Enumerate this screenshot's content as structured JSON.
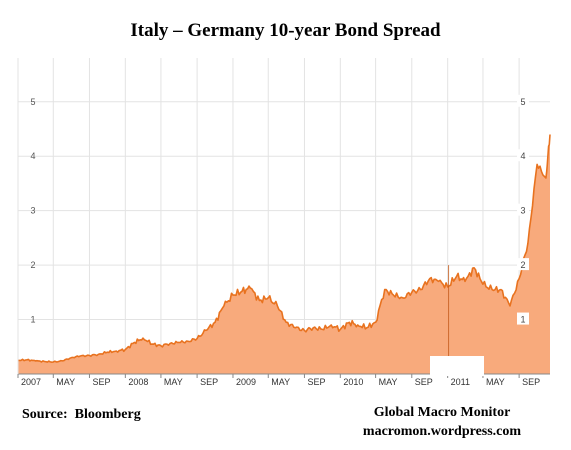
{
  "title": "Italy –  Germany 10-year Bond Spread",
  "source": "Source:  Bloomberg",
  "credit": {
    "line1": "Global Macro Monitor",
    "line2": "macromon.wordpress.com"
  },
  "colors": {
    "area_fill": "#f8aa7c",
    "line": "#e8721f",
    "grid": "#e3e3e3",
    "axis": "#888888"
  },
  "chart_data": {
    "type": "area",
    "title": "Italy –  Germany 10-year Bond Spread",
    "xlabel": "",
    "ylabel": "",
    "ylim": [
      0,
      5
    ],
    "y_ticks": [
      1,
      2,
      3,
      4,
      5
    ],
    "x_range": [
      "2007-01-01",
      "2011-12-15"
    ],
    "x_tick_labels": [
      {
        "date": "2007-01-01",
        "label": "2007"
      },
      {
        "date": "2007-05-01",
        "label": "MAY"
      },
      {
        "date": "2007-09-01",
        "label": "SEP"
      },
      {
        "date": "2008-01-01",
        "label": "2008"
      },
      {
        "date": "2008-05-01",
        "label": "MAY"
      },
      {
        "date": "2008-09-01",
        "label": "SEP"
      },
      {
        "date": "2009-01-01",
        "label": "2009"
      },
      {
        "date": "2009-05-01",
        "label": "MAY"
      },
      {
        "date": "2009-09-01",
        "label": "SEP"
      },
      {
        "date": "2010-01-01",
        "label": "2010"
      },
      {
        "date": "2010-05-01",
        "label": "MAY"
      },
      {
        "date": "2010-09-01",
        "label": "SEP"
      },
      {
        "date": "2011-01-01",
        "label": "2011"
      },
      {
        "date": "2011-05-01",
        "label": "MAY"
      },
      {
        "date": "2011-09-01",
        "label": "SEP"
      }
    ],
    "grid": true,
    "legend": "none",
    "series": [
      {
        "x": [
          "2007-01-01",
          "2007-02-01",
          "2007-03-01",
          "2007-04-01",
          "2007-05-01",
          "2007-06-01",
          "2007-07-01",
          "2007-08-01",
          "2007-09-01",
          "2007-10-01",
          "2007-11-01",
          "2007-12-01",
          "2008-01-01",
          "2008-02-01",
          "2008-03-01",
          "2008-04-01",
          "2008-05-01",
          "2008-06-01",
          "2008-07-01",
          "2008-08-01",
          "2008-09-01",
          "2008-10-01",
          "2008-11-01",
          "2008-12-01",
          "2009-01-01",
          "2009-02-01",
          "2009-03-01",
          "2009-04-01",
          "2009-05-01",
          "2009-06-01",
          "2009-07-01",
          "2009-08-01",
          "2009-09-01",
          "2009-10-01",
          "2009-11-01",
          "2009-12-01",
          "2010-01-01",
          "2010-02-01",
          "2010-03-01",
          "2010-04-01",
          "2010-05-01",
          "2010-06-01",
          "2010-07-01",
          "2010-08-01",
          "2010-09-01",
          "2010-10-01",
          "2010-11-01",
          "2010-12-01",
          "2011-01-01",
          "2011-02-01",
          "2011-03-01",
          "2011-04-01",
          "2011-05-01",
          "2011-06-01",
          "2011-07-01",
          "2011-08-01",
          "2011-09-01",
          "2011-10-01",
          "2011-11-01",
          "2011-12-01",
          "2011-12-15"
        ],
        "y": [
          0.25,
          0.26,
          0.24,
          0.23,
          0.22,
          0.24,
          0.3,
          0.33,
          0.34,
          0.36,
          0.4,
          0.42,
          0.45,
          0.58,
          0.66,
          0.55,
          0.52,
          0.56,
          0.58,
          0.6,
          0.65,
          0.8,
          0.95,
          1.25,
          1.45,
          1.52,
          1.58,
          1.35,
          1.4,
          1.25,
          0.95,
          0.85,
          0.8,
          0.85,
          0.82,
          0.9,
          0.82,
          0.95,
          0.9,
          0.85,
          0.95,
          1.55,
          1.45,
          1.4,
          1.5,
          1.55,
          1.75,
          1.7,
          1.6,
          1.8,
          1.7,
          1.95,
          1.65,
          1.55,
          1.55,
          1.25,
          1.75,
          2.4,
          3.85,
          3.6,
          4.4
        ]
      }
    ]
  }
}
